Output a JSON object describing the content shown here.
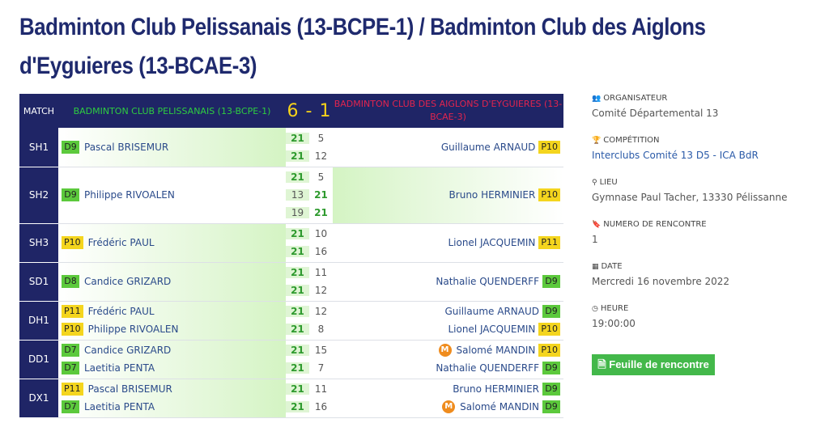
{
  "page_title": "Badminton Club Pelissanais (13-BCPE-1) / Badminton Club des Aiglons d'Eyguieres (13-BCAE-3)",
  "table": {
    "header": {
      "match": "MATCH",
      "home": "BADMINTON CLUB PELISSANAIS (13-BCPE-1)",
      "score": "6 - 1",
      "away": "BADMINTON CLUB DES AIGLONS D'EYGUIERES (13-BCAE-3)"
    },
    "rows": [
      {
        "type": "SH1",
        "winner": "home",
        "home": [
          {
            "rank": "D9",
            "rank_color": "green",
            "name": "Pascal BRISEMUR"
          }
        ],
        "away": [
          {
            "rank": "P10",
            "rank_color": "yellow",
            "name": "Guillaume ARNAUD"
          }
        ],
        "sets": [
          [
            "21",
            "5"
          ],
          [
            "21",
            "12"
          ]
        ]
      },
      {
        "type": "SH2",
        "winner": "away",
        "home": [
          {
            "rank": "D9",
            "rank_color": "green",
            "name": "Philippe RIVOALEN"
          }
        ],
        "away": [
          {
            "rank": "P10",
            "rank_color": "yellow",
            "name": "Bruno HERMINIER"
          }
        ],
        "sets": [
          [
            "21",
            "5"
          ],
          [
            "13",
            "21"
          ],
          [
            "19",
            "21"
          ]
        ]
      },
      {
        "type": "SH3",
        "winner": "home",
        "home": [
          {
            "rank": "P10",
            "rank_color": "yellow",
            "name": "Frédéric PAUL"
          }
        ],
        "away": [
          {
            "rank": "P11",
            "rank_color": "yellow",
            "name": "Lionel JACQUEMIN"
          }
        ],
        "sets": [
          [
            "21",
            "10"
          ],
          [
            "21",
            "16"
          ]
        ]
      },
      {
        "type": "SD1",
        "winner": "home",
        "home": [
          {
            "rank": "D8",
            "rank_color": "green",
            "name": "Candice GRIZARD"
          }
        ],
        "away": [
          {
            "rank": "D9",
            "rank_color": "green",
            "name": "Nathalie QUENDERFF"
          }
        ],
        "sets": [
          [
            "21",
            "11"
          ],
          [
            "21",
            "12"
          ]
        ]
      },
      {
        "type": "DH1",
        "winner": "home",
        "home": [
          {
            "rank": "P11",
            "rank_color": "yellow",
            "name": "Frédéric PAUL"
          },
          {
            "rank": "P10",
            "rank_color": "yellow",
            "name": "Philippe RIVOALEN"
          }
        ],
        "away": [
          {
            "rank": "D9",
            "rank_color": "green",
            "name": "Guillaume ARNAUD"
          },
          {
            "rank": "P10",
            "rank_color": "yellow",
            "name": "Lionel JACQUEMIN"
          }
        ],
        "sets": [
          [
            "21",
            "12"
          ],
          [
            "21",
            "8"
          ]
        ]
      },
      {
        "type": "DD1",
        "winner": "home",
        "home": [
          {
            "rank": "D7",
            "rank_color": "green",
            "name": "Candice GRIZARD"
          },
          {
            "rank": "D7",
            "rank_color": "green",
            "name": "Laetitia PENTA"
          }
        ],
        "away": [
          {
            "rank": "P10",
            "rank_color": "yellow",
            "name": "Salomé MANDIN",
            "badge": "M"
          },
          {
            "rank": "D9",
            "rank_color": "green",
            "name": "Nathalie QUENDERFF"
          }
        ],
        "sets": [
          [
            "21",
            "15"
          ],
          [
            "21",
            "7"
          ]
        ]
      },
      {
        "type": "DX1",
        "winner": "home",
        "home": [
          {
            "rank": "P11",
            "rank_color": "yellow",
            "name": "Pascal BRISEMUR"
          },
          {
            "rank": "D7",
            "rank_color": "green",
            "name": "Laetitia PENTA"
          }
        ],
        "away": [
          {
            "rank": "D9",
            "rank_color": "green",
            "name": "Bruno HERMINIER"
          },
          {
            "rank": "D9",
            "rank_color": "green",
            "name": "Salomé MANDIN",
            "badge": "M"
          }
        ],
        "sets": [
          [
            "21",
            "11"
          ],
          [
            "21",
            "16"
          ]
        ]
      }
    ]
  },
  "sidebar": {
    "organisateur": {
      "icon": "users-icon",
      "label": "ORGANISATEUR",
      "value": "Comité Départemental 13"
    },
    "competition": {
      "icon": "trophy-icon",
      "label": "COMPÉTITION",
      "value": "Interclubs Comité 13 D5 - ICA BdR"
    },
    "lieu": {
      "icon": "map-marker-icon",
      "label": "LIEU",
      "value": "Gymnase Paul Tacher, 13330 Pélissanne"
    },
    "numero": {
      "icon": "bookmark-icon",
      "label": "NUMERO DE RENCONTRE",
      "value": "1"
    },
    "date": {
      "icon": "calendar-icon",
      "label": "DATE",
      "value": "Mercredi 16 novembre 2022"
    },
    "heure": {
      "icon": "clock-icon",
      "label": "HEURE",
      "value": "19:00:00"
    }
  },
  "button": {
    "icon": "pdf-file-icon",
    "label": "Feuille de rencontre"
  },
  "colors": {
    "navy": "#1f2566",
    "title": "#1f2a6e",
    "home_green": "#2ecc40",
    "away_red": "#e2244e",
    "score_yellow": "#f6d21a",
    "rank_green": "#5cc93c",
    "rank_yellow": "#f4d51e",
    "button_green": "#43b84a"
  }
}
